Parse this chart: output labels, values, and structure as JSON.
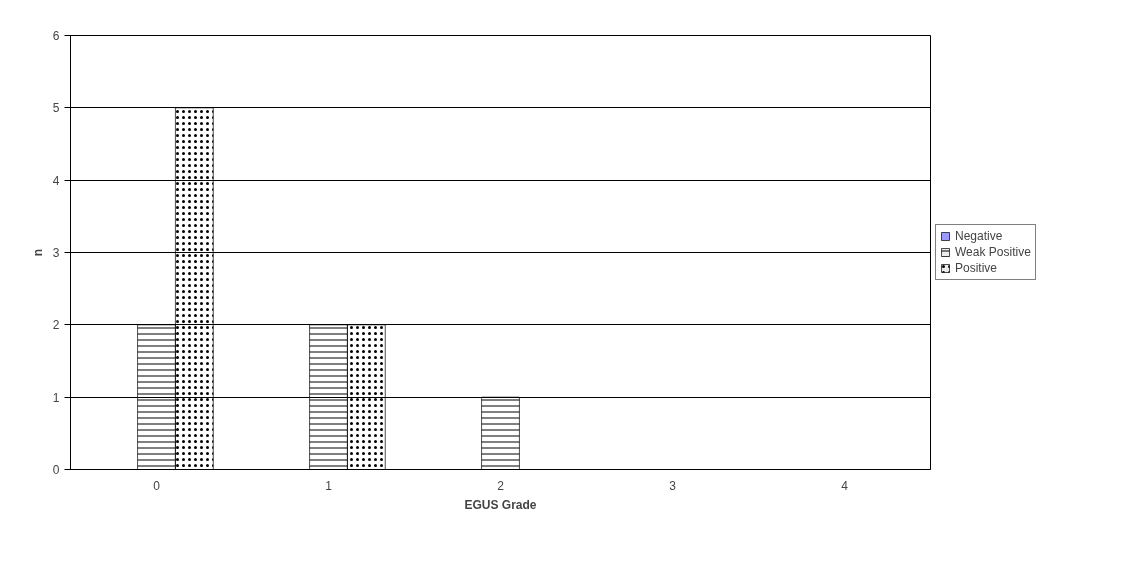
{
  "chart_data": {
    "type": "bar",
    "xlabel": "EGUS Grade",
    "ylabel": "n",
    "categories": [
      "0",
      "1",
      "2",
      "3",
      "4"
    ],
    "series": [
      {
        "name": "Negative",
        "color": "#9999ff",
        "values": [
          0,
          0,
          0,
          0,
          0
        ]
      },
      {
        "name": "Weak Positive",
        "color": "#000000",
        "values": [
          2,
          2,
          1,
          0,
          0
        ]
      },
      {
        "name": "Positive",
        "color": "#000000",
        "values": [
          5,
          2,
          0,
          0,
          0
        ]
      }
    ],
    "ylim": [
      0,
      6
    ],
    "yticks": [
      0,
      1,
      2,
      3,
      4,
      5,
      6
    ],
    "grid": "y",
    "legend": "right"
  }
}
